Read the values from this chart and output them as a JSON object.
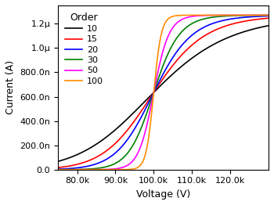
{
  "title": "",
  "xlabel": "Voltage (V)",
  "ylabel": "Current (A)",
  "legend_title": "Order",
  "orders": [
    10,
    15,
    20,
    30,
    50,
    100
  ],
  "colors": [
    "black",
    "red",
    "blue",
    "green",
    "magenta",
    "darkorange"
  ],
  "x_min": 75000,
  "x_max": 130000,
  "y_min": 0,
  "y_max": 1.35e-06,
  "v0": 100000,
  "i_max": 1.27e-06,
  "x_ticks": [
    80000,
    90000,
    100000,
    110000,
    120000
  ],
  "y_ticks": [
    0.0,
    2e-07,
    4e-07,
    6e-07,
    8e-07,
    1e-06,
    1.2e-06
  ],
  "background_color": "white"
}
